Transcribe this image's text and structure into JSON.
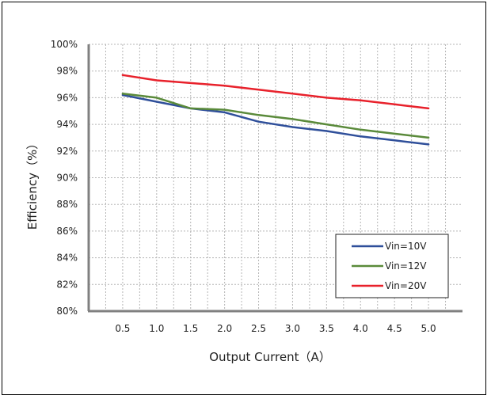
{
  "chart_data": {
    "type": "line",
    "xlabel": "Output Current（A）",
    "ylabel": "Efficiency（%）",
    "x": [
      0.5,
      1.0,
      1.5,
      2.0,
      2.5,
      3.0,
      3.5,
      4.0,
      4.5,
      5.0
    ],
    "x_tick_labels": [
      "0.5",
      "1.0",
      "1.5",
      "2.0",
      "2.5",
      "3.0",
      "3.5",
      "4.0",
      "4.5",
      "5.0"
    ],
    "ylim": [
      80,
      100
    ],
    "y_ticks": [
      80,
      82,
      84,
      86,
      88,
      90,
      92,
      94,
      96,
      98,
      100
    ],
    "y_tick_labels": [
      "80%",
      "82%",
      "84%",
      "86%",
      "88%",
      "90%",
      "92%",
      "94%",
      "96%",
      "98%",
      "100%"
    ],
    "grid": true,
    "legend_position": "bottom-right",
    "series": [
      {
        "name": "Vin=10V",
        "color": "#2f4f9a",
        "values": [
          96.2,
          95.7,
          95.2,
          94.9,
          94.2,
          93.8,
          93.5,
          93.1,
          92.8,
          92.5
        ]
      },
      {
        "name": "Vin=12V",
        "color": "#5a8a3a",
        "values": [
          96.3,
          96.0,
          95.2,
          95.1,
          94.7,
          94.4,
          94.0,
          93.6,
          93.3,
          93.0
        ]
      },
      {
        "name": "Vin=20V",
        "color": "#e8212b",
        "values": [
          97.7,
          97.3,
          97.1,
          96.9,
          96.6,
          96.3,
          96.0,
          95.8,
          95.5,
          95.2
        ]
      }
    ]
  }
}
